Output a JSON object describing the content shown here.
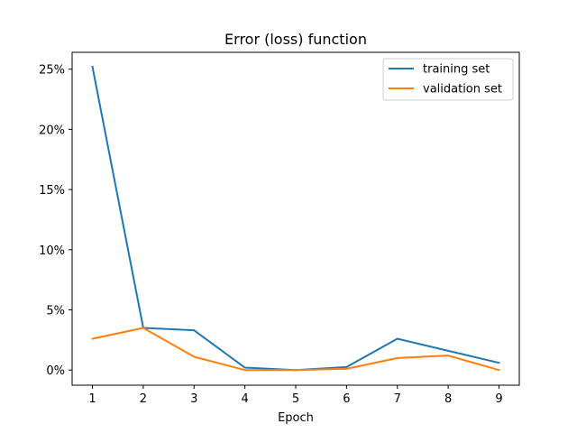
{
  "chart_data": {
    "type": "line",
    "title": "Error (loss) function",
    "xlabel": "Epoch",
    "ylabel": "",
    "x": [
      1,
      2,
      3,
      4,
      5,
      6,
      7,
      8,
      9
    ],
    "xticks": [
      "1",
      "2",
      "3",
      "4",
      "5",
      "6",
      "7",
      "8",
      "9"
    ],
    "xlim": [
      0.6,
      9.4
    ],
    "ylim": [
      -1.26,
      26.4
    ],
    "yticks": [
      0,
      5,
      10,
      15,
      20,
      25
    ],
    "ytick_labels": [
      "0%",
      "5%",
      "10%",
      "15%",
      "20%",
      "25%"
    ],
    "grid": false,
    "legend_position": "top-right",
    "series": [
      {
        "name": "training set",
        "color": "#1f77b4",
        "values": [
          25.2,
          3.5,
          3.3,
          0.2,
          0.0,
          0.25,
          2.6,
          1.6,
          0.6
        ]
      },
      {
        "name": "validation set",
        "color": "#ff7f0e",
        "values": [
          2.6,
          3.5,
          1.1,
          0.0,
          0.0,
          0.1,
          1.0,
          1.2,
          0.0
        ]
      }
    ]
  }
}
